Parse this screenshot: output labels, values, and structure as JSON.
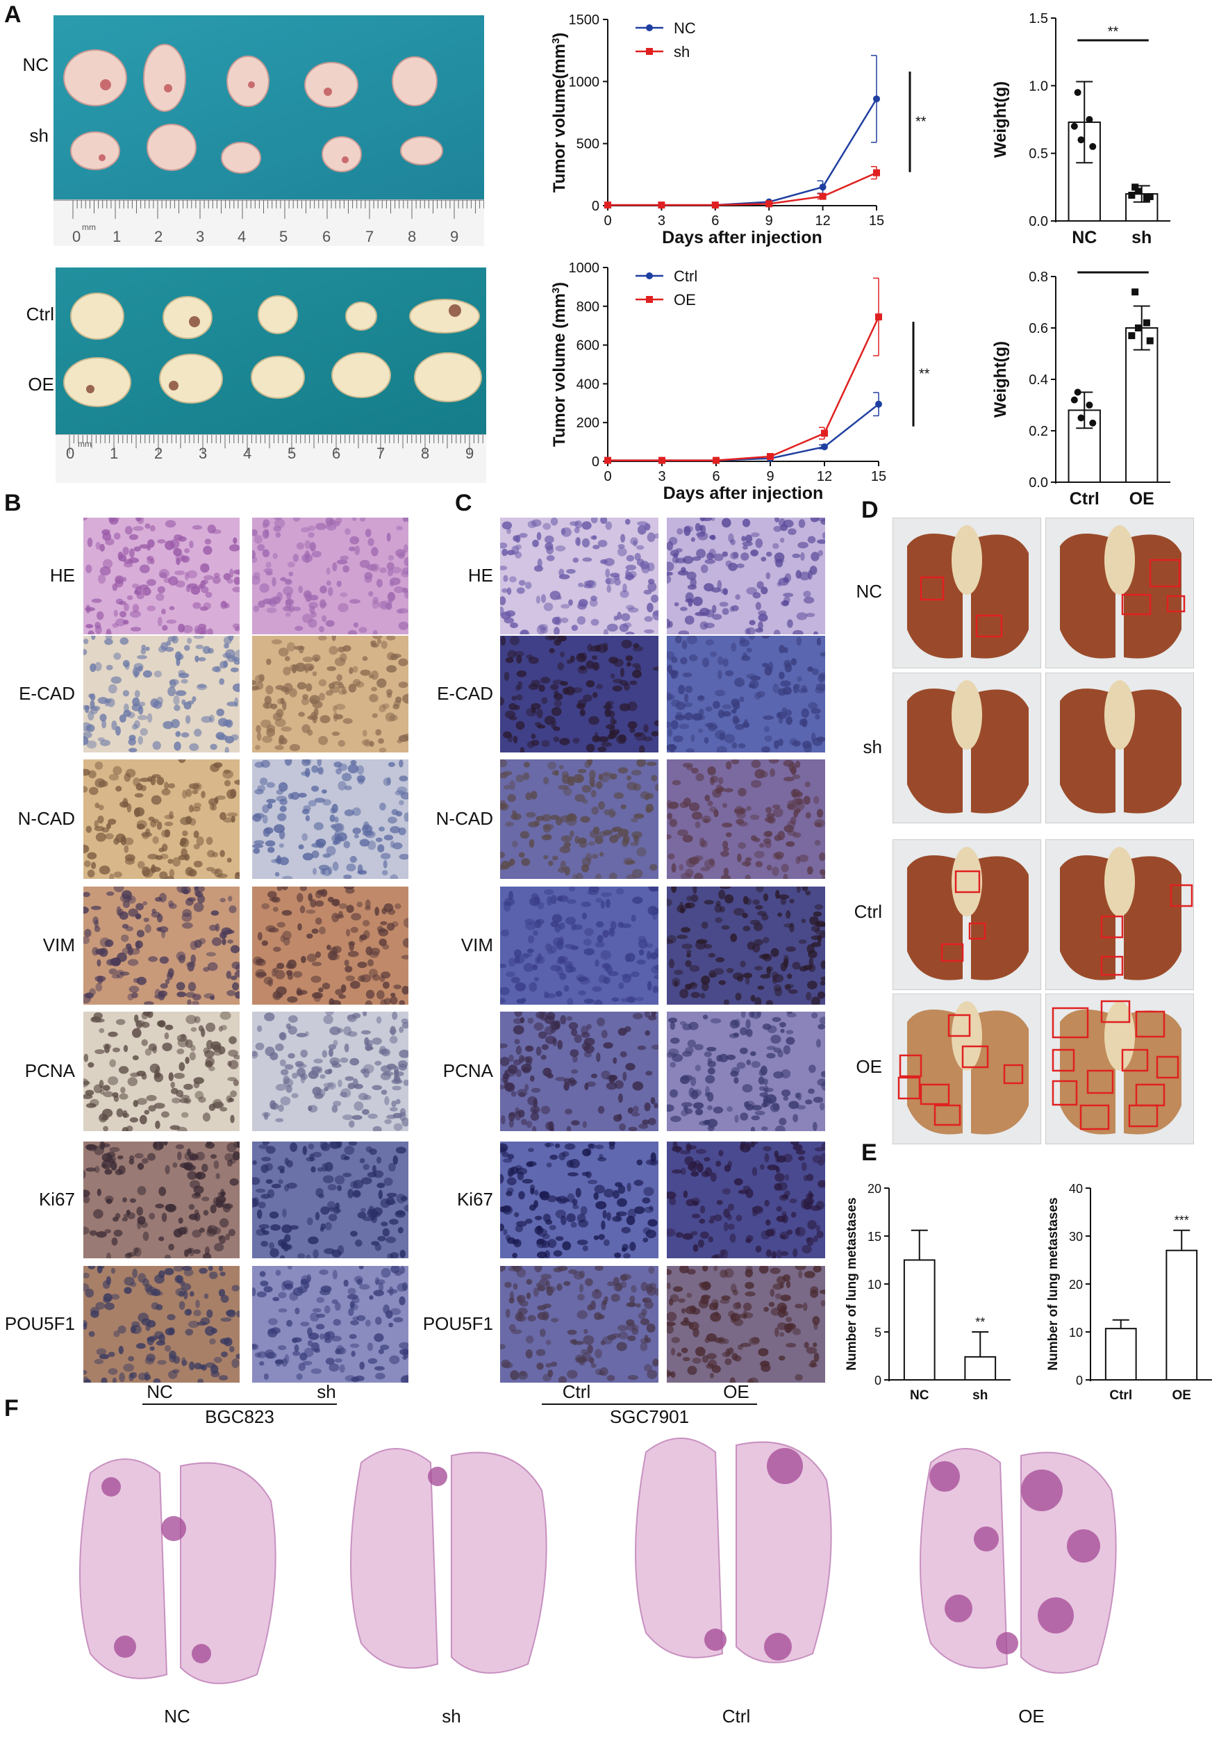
{
  "panels": {
    "A": "A",
    "B": "B",
    "C": "C",
    "D": "D",
    "E": "E",
    "F": "F"
  },
  "panelA": {
    "photo_top_rows": [
      "NC",
      "sh"
    ],
    "photo_bottom_rows": [
      "Ctrl",
      "OE"
    ],
    "ruler_unit": "mm",
    "ruler_numbers": [
      "0",
      "1",
      "2",
      "3",
      "4",
      "5",
      "6",
      "7",
      "8",
      "9"
    ]
  },
  "stains": [
    "HE",
    "E-CAD",
    "N-CAD",
    "VIM",
    "PCNA",
    "Ki67",
    "POU5F1"
  ],
  "panelB": {
    "columns": [
      "NC",
      "sh"
    ],
    "cell_line": "BGC823"
  },
  "panelC": {
    "columns": [
      "Ctrl",
      "OE"
    ],
    "cell_line": "SGC7901"
  },
  "panelD": {
    "rows": [
      "NC",
      "sh",
      "Ctrl",
      "OE"
    ]
  },
  "panelF": {
    "labels": [
      "NC",
      "sh",
      "Ctrl",
      "OE"
    ]
  },
  "colors": {
    "blue": "#1f3fa0",
    "red": "#e02020",
    "tissue_pink": "#c86aa8",
    "he_bg": "#c8a0cc",
    "dab_brown": "#9a6a40",
    "hema_blue": "#4a4f96",
    "drape": "#1f8fa0"
  },
  "chart_data": [
    {
      "id": "growth_sh",
      "type": "line",
      "ylabel_main": "Tumor volume(mm",
      "ylabel_sup": "3",
      "ylabel_tail": ")",
      "xlabel": "Days after injection",
      "x": [
        0,
        3,
        6,
        9,
        12,
        15
      ],
      "ylim": [
        0,
        1500
      ],
      "yticks": [
        "0",
        "500",
        "1000",
        "1500"
      ],
      "xticks": [
        "0",
        "3",
        "6",
        "9",
        "12",
        "15"
      ],
      "series": [
        {
          "name": "NC",
          "color": "#1f3fa0",
          "values": [
            5,
            5,
            5,
            30,
            150,
            860
          ],
          "err": [
            0,
            0,
            0,
            0,
            50,
            350
          ]
        },
        {
          "name": "sh",
          "color": "#e02020",
          "values": [
            5,
            5,
            5,
            15,
            75,
            265
          ],
          "err": [
            0,
            0,
            0,
            0,
            20,
            50
          ]
        }
      ],
      "significance": "**"
    },
    {
      "id": "growth_oe",
      "type": "line",
      "ylabel_main": "Tumor volume (mm",
      "ylabel_sup": "3",
      "ylabel_tail": ")",
      "xlabel": "Days after injection",
      "x": [
        0,
        3,
        6,
        9,
        12,
        15
      ],
      "ylim": [
        0,
        1000
      ],
      "yticks": [
        "0",
        "200",
        "400",
        "600",
        "800",
        "1000"
      ],
      "xticks": [
        "0",
        "3",
        "6",
        "9",
        "12",
        "15"
      ],
      "series": [
        {
          "name": "Ctrl",
          "color": "#1f3fa0",
          "values": [
            5,
            5,
            5,
            15,
            75,
            295
          ],
          "err": [
            0,
            0,
            0,
            0,
            10,
            60
          ]
        },
        {
          "name": "OE",
          "color": "#e02020",
          "values": [
            5,
            5,
            5,
            25,
            145,
            745
          ],
          "err": [
            0,
            0,
            0,
            0,
            30,
            200
          ]
        }
      ],
      "significance": "**"
    },
    {
      "id": "weight_sh",
      "type": "bar",
      "ylabel": "Weight(g)",
      "categories": [
        "NC",
        "sh"
      ],
      "values": [
        0.73,
        0.2
      ],
      "err": [
        0.3,
        0.06
      ],
      "ylim": [
        0,
        1.5
      ],
      "yticks": [
        "0.0",
        "0.5",
        "1.0",
        "1.5"
      ],
      "points": [
        [
          0.95,
          0.75,
          0.6,
          0.55,
          0.7
        ],
        [
          0.25,
          0.17,
          0.22,
          0.18,
          0.19
        ]
      ],
      "significance": "**"
    },
    {
      "id": "weight_oe",
      "type": "bar",
      "ylabel": "Weight(g)",
      "categories": [
        "Ctrl",
        "OE"
      ],
      "values": [
        0.28,
        0.6
      ],
      "err": [
        0.07,
        0.085
      ],
      "ylim": [
        0,
        0.8
      ],
      "yticks": [
        "0.0",
        "0.2",
        "0.4",
        "0.6",
        "0.8"
      ],
      "points": [
        [
          0.35,
          0.3,
          0.25,
          0.23,
          0.32
        ],
        [
          0.74,
          0.62,
          0.6,
          0.55,
          0.57
        ]
      ],
      "significance": "***"
    },
    {
      "id": "mets_sh",
      "type": "bar",
      "ylabel": "Number of lung metastases",
      "categories": [
        "NC",
        "sh"
      ],
      "values": [
        12.5,
        2.4
      ],
      "err": [
        3.1,
        2.6
      ],
      "ylim": [
        0,
        20
      ],
      "yticks": [
        "0",
        "5",
        "10",
        "15",
        "20"
      ],
      "significance": "**"
    },
    {
      "id": "mets_oe",
      "type": "bar",
      "ylabel": "Number of lung metastases",
      "categories": [
        "Ctrl",
        "OE"
      ],
      "values": [
        10.7,
        27
      ],
      "err": [
        1.8,
        4.2
      ],
      "ylim": [
        0,
        40
      ],
      "yticks": [
        "0",
        "10",
        "20",
        "30",
        "40"
      ],
      "significance": "***"
    }
  ]
}
